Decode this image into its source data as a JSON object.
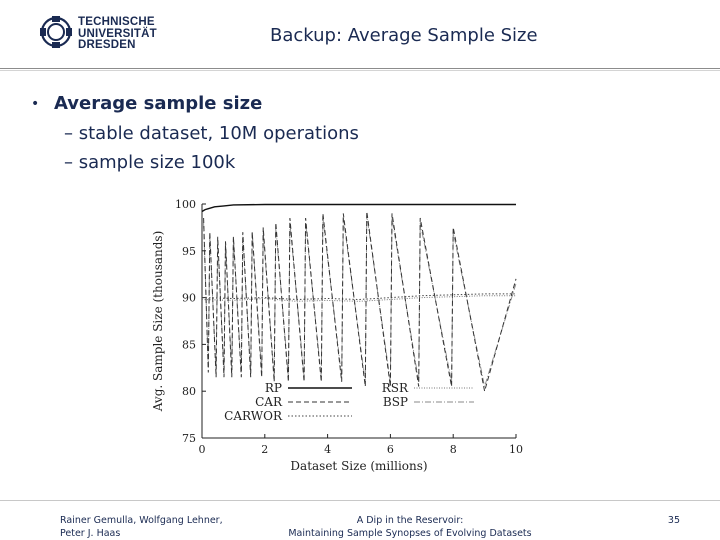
{
  "header": {
    "logo_lines": [
      "TECHNISCHE",
      "UNIVERSITÄT",
      "DRESDEN"
    ],
    "title": "Backup: Average Sample Size"
  },
  "content": {
    "bullet": "Average sample size",
    "subitems": [
      "– stable dataset, 10M operations",
      "– sample size 100k"
    ]
  },
  "chart_data": {
    "type": "line",
    "xlabel": "Dataset Size (millions)",
    "ylabel": "Avg. Sample Size (thousands)",
    "xlim": [
      0,
      10
    ],
    "ylim": [
      75,
      100
    ],
    "x_ticks": [
      "0",
      "2",
      "4",
      "6",
      "8",
      "10"
    ],
    "y_ticks": [
      "75",
      "80",
      "85",
      "90",
      "95",
      "100"
    ],
    "legend": [
      {
        "name": "RP",
        "style": "solid"
      },
      {
        "name": "CAR",
        "style": "dashed"
      },
      {
        "name": "CARWOR",
        "style": "dotted"
      },
      {
        "name": "RSR",
        "style": "dotted-fine"
      },
      {
        "name": "BSP",
        "style": "dash-dot"
      }
    ],
    "legend_position": "bottom-center",
    "series": [
      {
        "name": "RP",
        "x": [
          0,
          0.1,
          0.2,
          0.4,
          0.7,
          1.0,
          2.0,
          4.0,
          6.0,
          8.0,
          10.0
        ],
        "y": [
          99.2,
          99.4,
          99.5,
          99.7,
          99.8,
          99.9,
          99.95,
          99.95,
          99.95,
          99.95,
          99.95
        ]
      },
      {
        "name": "CAR",
        "x": [
          0.05,
          0.2,
          0.25,
          0.45,
          0.5,
          0.7,
          0.75,
          0.95,
          1.0,
          1.25,
          1.3,
          1.55,
          1.6,
          1.9,
          1.95,
          2.3,
          2.35,
          2.75,
          2.8,
          3.25,
          3.3,
          3.8,
          3.85,
          4.45,
          4.5,
          5.2,
          5.25,
          6.0,
          6.05,
          6.9,
          6.95,
          7.95,
          8.0,
          9.0,
          10.0
        ],
        "y": [
          98.5,
          82.0,
          97.0,
          81.5,
          96.5,
          81.5,
          96.0,
          81.5,
          96.5,
          81.5,
          97.0,
          81.5,
          97.0,
          81.5,
          97.5,
          81.0,
          98.0,
          81.0,
          98.5,
          81.0,
          98.5,
          81.0,
          99.0,
          81.0,
          99.0,
          80.5,
          99.2,
          80.5,
          99.0,
          80.5,
          98.5,
          80.5,
          97.5,
          80.0,
          92.0
        ]
      },
      {
        "name": "CARWOR",
        "x": [
          0,
          1,
          2,
          3,
          4,
          5,
          6,
          7,
          8,
          9,
          10
        ],
        "y": [
          90.0,
          89.9,
          90.0,
          89.8,
          89.9,
          89.8,
          90.0,
          90.2,
          90.3,
          90.4,
          90.4
        ]
      },
      {
        "name": "RSR",
        "x": [
          0,
          1,
          2,
          3,
          4,
          5,
          6,
          7,
          8,
          9,
          10
        ],
        "y": [
          89.8,
          89.7,
          89.9,
          89.6,
          89.7,
          89.6,
          89.8,
          90.0,
          90.1,
          90.2,
          90.2
        ]
      },
      {
        "name": "BSP",
        "x": [
          0.05,
          0.2,
          0.25,
          0.45,
          0.5,
          0.7,
          0.75,
          0.95,
          1.0,
          1.25,
          1.3,
          1.55,
          1.6,
          1.9,
          1.95,
          2.3,
          2.35,
          2.75,
          2.8,
          3.25,
          3.3,
          3.8,
          3.85,
          4.45,
          4.5,
          5.2,
          5.25,
          6.0,
          6.05,
          6.9,
          6.95,
          7.95,
          8.0,
          9.0,
          10.0
        ],
        "y": [
          98.0,
          82.5,
          96.5,
          82.0,
          96.0,
          82.0,
          96.0,
          82.0,
          96.5,
          82.0,
          96.5,
          82.0,
          97.0,
          82.0,
          97.0,
          81.5,
          97.5,
          81.5,
          98.0,
          81.5,
          98.0,
          81.5,
          98.5,
          81.5,
          98.5,
          81.0,
          98.8,
          81.0,
          98.5,
          81.0,
          98.0,
          81.0,
          97.0,
          80.5,
          91.5
        ]
      }
    ]
  },
  "footer": {
    "left_lines": [
      "Rainer Gemulla, Wolfgang Lehner,",
      "Peter J. Haas"
    ],
    "center_lines": [
      "A Dip in the Reservoir:",
      "Maintaining Sample Synopses of Evolving Datasets"
    ],
    "page": "35"
  },
  "colors": {
    "text": "#1a2a52",
    "rule": "#8c8c8c"
  },
  "icons": {
    "logo": "tu-dresden-logo-icon",
    "bullet": "bullet-dot-icon"
  }
}
